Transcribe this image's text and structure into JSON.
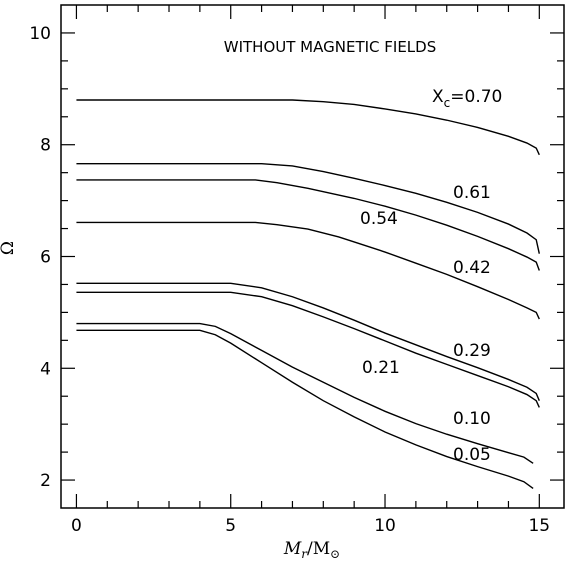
{
  "chart_data": {
    "type": "line",
    "title": "WITHOUT MAGNETIC FIELDS",
    "xlabel": "M_r/M_⊙",
    "ylabel": "Ω",
    "xlim": [
      -0.5,
      15.8
    ],
    "ylim": [
      1.5,
      10.5
    ],
    "xticks": [
      0,
      5,
      10,
      15
    ],
    "yticks": [
      2,
      4,
      6,
      8,
      10
    ],
    "series": [
      {
        "name": "X_c=0.70",
        "label_value": "0.70",
        "x": [
          0,
          7,
          8,
          9,
          10,
          11,
          12,
          13,
          14,
          14.6,
          14.9,
          15
        ],
        "y": [
          8.8,
          8.8,
          8.77,
          8.72,
          8.64,
          8.55,
          8.44,
          8.31,
          8.15,
          8.03,
          7.94,
          7.82
        ]
      },
      {
        "name": "0.61",
        "x": [
          0,
          6,
          7,
          8,
          9,
          10,
          11,
          12,
          13,
          14,
          14.6,
          14.9,
          15
        ],
        "y": [
          7.66,
          7.66,
          7.62,
          7.52,
          7.4,
          7.27,
          7.13,
          6.97,
          6.79,
          6.58,
          6.42,
          6.3,
          6.05
        ]
      },
      {
        "name": "0.54",
        "x": [
          0,
          5.8,
          6.5,
          7.5,
          8.5,
          9,
          10,
          11,
          12,
          13,
          14,
          14.6,
          14.9,
          15
        ],
        "y": [
          7.37,
          7.37,
          7.32,
          7.22,
          7.1,
          7.04,
          6.9,
          6.74,
          6.56,
          6.36,
          6.14,
          5.99,
          5.9,
          5.75
        ]
      },
      {
        "name": "0.42",
        "x": [
          0,
          5.8,
          6.5,
          7.5,
          8.5,
          9,
          10,
          11,
          12,
          13,
          14,
          14.6,
          14.9,
          15
        ],
        "y": [
          6.61,
          6.61,
          6.57,
          6.49,
          6.35,
          6.26,
          6.08,
          5.88,
          5.68,
          5.46,
          5.23,
          5.08,
          5.0,
          4.88
        ]
      },
      {
        "name": "0.29",
        "x": [
          0,
          5,
          6,
          7,
          8,
          9,
          10,
          11,
          12,
          13,
          14,
          14.6,
          14.9,
          15
        ],
        "y": [
          5.52,
          5.52,
          5.44,
          5.28,
          5.08,
          4.86,
          4.63,
          4.42,
          4.21,
          4.01,
          3.8,
          3.66,
          3.55,
          3.42
        ]
      },
      {
        "name": "0.21",
        "x": [
          0,
          5,
          6,
          7,
          8,
          9,
          10,
          11,
          12,
          13,
          14,
          14.6,
          14.9,
          15
        ],
        "y": [
          5.36,
          5.36,
          5.28,
          5.12,
          4.92,
          4.71,
          4.49,
          4.27,
          4.07,
          3.87,
          3.67,
          3.53,
          3.42,
          3.3
        ]
      },
      {
        "name": "0.10",
        "x": [
          0,
          4,
          4.5,
          5,
          6,
          7,
          8,
          9,
          10,
          11,
          12,
          13,
          14,
          14.5,
          14.8
        ],
        "y": [
          4.8,
          4.8,
          4.75,
          4.62,
          4.32,
          4.02,
          3.75,
          3.48,
          3.23,
          3.01,
          2.82,
          2.65,
          2.49,
          2.41,
          2.3
        ]
      },
      {
        "name": "0.05",
        "x": [
          0,
          4,
          4.5,
          5,
          6,
          7,
          8,
          9,
          10,
          11,
          12,
          13,
          14,
          14.5,
          14.8
        ],
        "y": [
          4.68,
          4.68,
          4.6,
          4.45,
          4.1,
          3.75,
          3.42,
          3.13,
          2.86,
          2.63,
          2.42,
          2.24,
          2.07,
          1.97,
          1.85
        ]
      }
    ],
    "labels": {
      "x_c_prefix": "X",
      "x_c_sub": "c",
      "x_c_eq": "=0.70",
      "l061": "0.61",
      "l054": "0.54",
      "l042": "0.42",
      "l029": "0.29",
      "l021": "0.21",
      "l010": "0.10",
      "l005": "0.05"
    }
  }
}
